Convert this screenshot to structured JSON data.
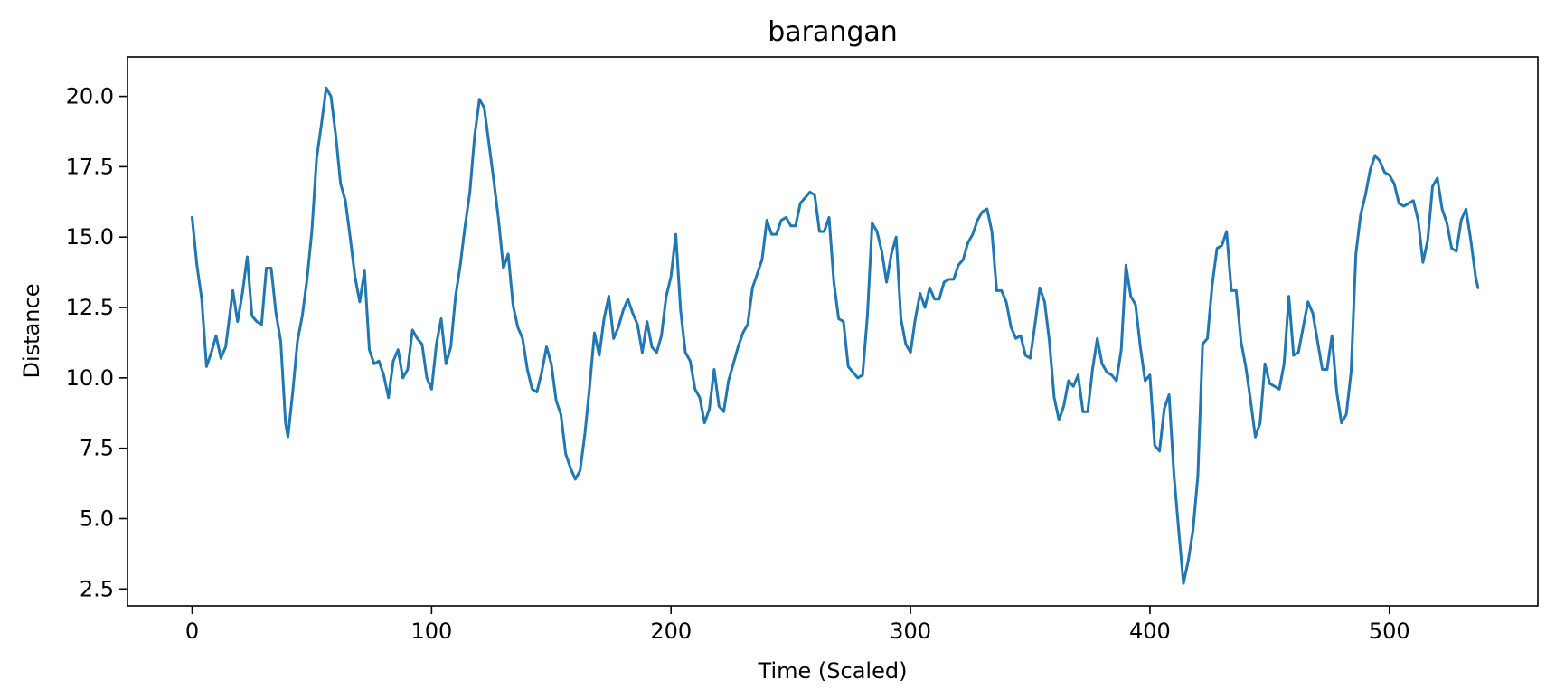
{
  "chart_data": {
    "type": "line",
    "title": "barangan",
    "xlabel": "Time (Scaled)",
    "ylabel": "Distance",
    "xlim": [
      -27,
      562
    ],
    "ylim": [
      1.9,
      21.4
    ],
    "xticks": [
      0,
      100,
      200,
      300,
      400,
      500
    ],
    "yticks": [
      2.5,
      5.0,
      7.5,
      10.0,
      12.5,
      15.0,
      17.5,
      20.0
    ],
    "xtick_labels": [
      "0",
      "100",
      "200",
      "300",
      "400",
      "500"
    ],
    "ytick_labels": [
      "2.5",
      "5.0",
      "7.5",
      "10.0",
      "12.5",
      "15.0",
      "17.5",
      "20.0"
    ],
    "grid": false,
    "line_color": "#1f77b4",
    "series": [
      {
        "points": [
          [
            0,
            15.7
          ],
          [
            2,
            14.0
          ],
          [
            4,
            12.8
          ],
          [
            6,
            10.4
          ],
          [
            8,
            10.9
          ],
          [
            10,
            11.5
          ],
          [
            12,
            10.7
          ],
          [
            14,
            11.1
          ],
          [
            17,
            13.1
          ],
          [
            19,
            12.0
          ],
          [
            21,
            13.0
          ],
          [
            23,
            14.3
          ],
          [
            25,
            12.2
          ],
          [
            27,
            12.0
          ],
          [
            29,
            11.9
          ],
          [
            31,
            13.9
          ],
          [
            33,
            13.9
          ],
          [
            35,
            12.3
          ],
          [
            37,
            11.3
          ],
          [
            39,
            8.4
          ],
          [
            40,
            7.9
          ],
          [
            42,
            9.5
          ],
          [
            44,
            11.3
          ],
          [
            46,
            12.2
          ],
          [
            48,
            13.5
          ],
          [
            50,
            15.2
          ],
          [
            52,
            17.8
          ],
          [
            54,
            19.0
          ],
          [
            56,
            20.3
          ],
          [
            58,
            20.0
          ],
          [
            60,
            18.6
          ],
          [
            62,
            16.9
          ],
          [
            64,
            16.3
          ],
          [
            66,
            15.0
          ],
          [
            68,
            13.6
          ],
          [
            70,
            12.7
          ],
          [
            72,
            13.8
          ],
          [
            74,
            11.0
          ],
          [
            76,
            10.5
          ],
          [
            78,
            10.6
          ],
          [
            80,
            10.1
          ],
          [
            82,
            9.3
          ],
          [
            84,
            10.6
          ],
          [
            86,
            11.0
          ],
          [
            88,
            10.0
          ],
          [
            90,
            10.3
          ],
          [
            92,
            11.7
          ],
          [
            94,
            11.4
          ],
          [
            96,
            11.2
          ],
          [
            98,
            10.0
          ],
          [
            100,
            9.6
          ],
          [
            102,
            11.2
          ],
          [
            104,
            12.1
          ],
          [
            106,
            10.5
          ],
          [
            108,
            11.1
          ],
          [
            110,
            12.9
          ],
          [
            112,
            14.0
          ],
          [
            114,
            15.4
          ],
          [
            116,
            16.6
          ],
          [
            118,
            18.6
          ],
          [
            120,
            19.9
          ],
          [
            122,
            19.6
          ],
          [
            124,
            18.3
          ],
          [
            126,
            17.0
          ],
          [
            128,
            15.6
          ],
          [
            130,
            13.9
          ],
          [
            132,
            14.4
          ],
          [
            134,
            12.6
          ],
          [
            136,
            11.8
          ],
          [
            138,
            11.4
          ],
          [
            140,
            10.3
          ],
          [
            142,
            9.6
          ],
          [
            144,
            9.5
          ],
          [
            146,
            10.2
          ],
          [
            148,
            11.1
          ],
          [
            150,
            10.5
          ],
          [
            152,
            9.2
          ],
          [
            154,
            8.7
          ],
          [
            156,
            7.3
          ],
          [
            158,
            6.8
          ],
          [
            160,
            6.4
          ],
          [
            162,
            6.7
          ],
          [
            164,
            8.0
          ],
          [
            166,
            9.7
          ],
          [
            168,
            11.6
          ],
          [
            170,
            10.8
          ],
          [
            172,
            12.1
          ],
          [
            174,
            12.9
          ],
          [
            176,
            11.4
          ],
          [
            178,
            11.8
          ],
          [
            180,
            12.4
          ],
          [
            182,
            12.8
          ],
          [
            184,
            12.3
          ],
          [
            186,
            11.9
          ],
          [
            188,
            10.9
          ],
          [
            190,
            12.0
          ],
          [
            192,
            11.1
          ],
          [
            194,
            10.9
          ],
          [
            196,
            11.5
          ],
          [
            198,
            12.9
          ],
          [
            200,
            13.6
          ],
          [
            202,
            15.1
          ],
          [
            204,
            12.4
          ],
          [
            206,
            10.9
          ],
          [
            208,
            10.6
          ],
          [
            210,
            9.6
          ],
          [
            212,
            9.3
          ],
          [
            214,
            8.4
          ],
          [
            216,
            8.9
          ],
          [
            218,
            10.3
          ],
          [
            220,
            9.0
          ],
          [
            222,
            8.8
          ],
          [
            224,
            9.9
          ],
          [
            226,
            10.5
          ],
          [
            228,
            11.1
          ],
          [
            230,
            11.6
          ],
          [
            232,
            11.9
          ],
          [
            234,
            13.2
          ],
          [
            236,
            13.7
          ],
          [
            238,
            14.2
          ],
          [
            240,
            15.6
          ],
          [
            242,
            15.1
          ],
          [
            244,
            15.1
          ],
          [
            246,
            15.6
          ],
          [
            248,
            15.7
          ],
          [
            250,
            15.4
          ],
          [
            252,
            15.4
          ],
          [
            254,
            16.2
          ],
          [
            256,
            16.4
          ],
          [
            258,
            16.6
          ],
          [
            260,
            16.5
          ],
          [
            262,
            15.2
          ],
          [
            264,
            15.2
          ],
          [
            266,
            15.7
          ],
          [
            268,
            13.4
          ],
          [
            270,
            12.1
          ],
          [
            272,
            12.0
          ],
          [
            274,
            10.4
          ],
          [
            276,
            10.2
          ],
          [
            278,
            10.0
          ],
          [
            280,
            10.1
          ],
          [
            282,
            12.2
          ],
          [
            284,
            15.5
          ],
          [
            286,
            15.2
          ],
          [
            288,
            14.5
          ],
          [
            290,
            13.4
          ],
          [
            292,
            14.4
          ],
          [
            294,
            15.0
          ],
          [
            296,
            12.1
          ],
          [
            298,
            11.2
          ],
          [
            300,
            10.9
          ],
          [
            302,
            12.1
          ],
          [
            304,
            13.0
          ],
          [
            306,
            12.5
          ],
          [
            308,
            13.2
          ],
          [
            310,
            12.8
          ],
          [
            312,
            12.8
          ],
          [
            314,
            13.4
          ],
          [
            316,
            13.5
          ],
          [
            318,
            13.5
          ],
          [
            320,
            14.0
          ],
          [
            322,
            14.2
          ],
          [
            324,
            14.8
          ],
          [
            326,
            15.1
          ],
          [
            328,
            15.6
          ],
          [
            330,
            15.9
          ],
          [
            332,
            16.0
          ],
          [
            334,
            15.2
          ],
          [
            336,
            13.1
          ],
          [
            338,
            13.1
          ],
          [
            340,
            12.7
          ],
          [
            342,
            11.8
          ],
          [
            344,
            11.4
          ],
          [
            346,
            11.5
          ],
          [
            348,
            10.8
          ],
          [
            350,
            10.7
          ],
          [
            352,
            11.9
          ],
          [
            354,
            13.2
          ],
          [
            356,
            12.7
          ],
          [
            358,
            11.3
          ],
          [
            360,
            9.3
          ],
          [
            362,
            8.5
          ],
          [
            364,
            9.0
          ],
          [
            366,
            9.9
          ],
          [
            368,
            9.7
          ],
          [
            370,
            10.1
          ],
          [
            372,
            8.8
          ],
          [
            374,
            8.8
          ],
          [
            376,
            10.3
          ],
          [
            378,
            11.4
          ],
          [
            380,
            10.5
          ],
          [
            382,
            10.2
          ],
          [
            384,
            10.1
          ],
          [
            386,
            9.9
          ],
          [
            388,
            11.0
          ],
          [
            390,
            14.0
          ],
          [
            392,
            12.9
          ],
          [
            394,
            12.6
          ],
          [
            396,
            11.1
          ],
          [
            398,
            9.9
          ],
          [
            400,
            10.1
          ],
          [
            402,
            7.6
          ],
          [
            404,
            7.4
          ],
          [
            406,
            8.9
          ],
          [
            408,
            9.4
          ],
          [
            410,
            6.6
          ],
          [
            412,
            4.6
          ],
          [
            414,
            2.7
          ],
          [
            416,
            3.5
          ],
          [
            418,
            4.6
          ],
          [
            420,
            6.5
          ],
          [
            422,
            11.2
          ],
          [
            424,
            11.4
          ],
          [
            426,
            13.3
          ],
          [
            428,
            14.6
          ],
          [
            430,
            14.7
          ],
          [
            432,
            15.2
          ],
          [
            434,
            13.1
          ],
          [
            436,
            13.1
          ],
          [
            438,
            11.3
          ],
          [
            440,
            10.4
          ],
          [
            442,
            9.2
          ],
          [
            444,
            7.9
          ],
          [
            446,
            8.4
          ],
          [
            448,
            10.5
          ],
          [
            450,
            9.8
          ],
          [
            452,
            9.7
          ],
          [
            454,
            9.6
          ],
          [
            456,
            10.5
          ],
          [
            458,
            12.9
          ],
          [
            460,
            10.8
          ],
          [
            462,
            10.9
          ],
          [
            464,
            11.8
          ],
          [
            466,
            12.7
          ],
          [
            468,
            12.3
          ],
          [
            470,
            11.3
          ],
          [
            472,
            10.3
          ],
          [
            474,
            10.3
          ],
          [
            476,
            11.5
          ],
          [
            478,
            9.5
          ],
          [
            480,
            8.4
          ],
          [
            482,
            8.7
          ],
          [
            484,
            10.2
          ],
          [
            486,
            14.4
          ],
          [
            488,
            15.8
          ],
          [
            490,
            16.5
          ],
          [
            492,
            17.4
          ],
          [
            494,
            17.9
          ],
          [
            496,
            17.7
          ],
          [
            498,
            17.3
          ],
          [
            500,
            17.2
          ],
          [
            502,
            16.9
          ],
          [
            504,
            16.2
          ],
          [
            506,
            16.1
          ],
          [
            508,
            16.2
          ],
          [
            510,
            16.3
          ],
          [
            512,
            15.6
          ],
          [
            514,
            14.1
          ],
          [
            516,
            14.9
          ],
          [
            518,
            16.8
          ],
          [
            520,
            17.1
          ],
          [
            522,
            16.0
          ],
          [
            524,
            15.5
          ],
          [
            526,
            14.6
          ],
          [
            528,
            14.5
          ],
          [
            530,
            15.6
          ],
          [
            532,
            16.0
          ],
          [
            534,
            14.9
          ],
          [
            536,
            13.6
          ],
          [
            537,
            13.2
          ]
        ]
      }
    ]
  }
}
